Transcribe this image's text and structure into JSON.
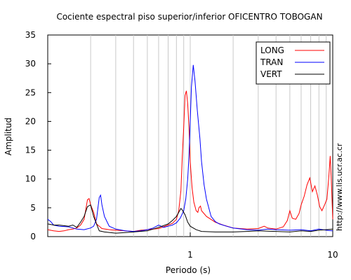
{
  "chart_data": {
    "type": "line",
    "title": "Cociente espectral piso superior/inferior OFICENTRO TOBOGAN",
    "xlabel": "Periodo (s)",
    "ylabel": "Amplitud",
    "xscale": "log",
    "xlim": [
      0.1,
      10
    ],
    "ylim": [
      0,
      35
    ],
    "xtick_labels": [
      {
        "value": 1,
        "label": "1"
      },
      {
        "value": 10,
        "label": "10"
      }
    ],
    "ytick_labels": [
      {
        "value": 0,
        "label": "0"
      },
      {
        "value": 5,
        "label": "5"
      },
      {
        "value": 10,
        "label": "10"
      },
      {
        "value": 15,
        "label": "15"
      },
      {
        "value": 20,
        "label": "20"
      },
      {
        "value": 25,
        "label": "25"
      },
      {
        "value": 30,
        "label": "30"
      },
      {
        "value": 35,
        "label": "35"
      }
    ],
    "grid": "vertical minor lines at log decades",
    "legend_position": "top-right",
    "side_label": "http://www.lis.ucr.ac.cr",
    "series": [
      {
        "name": "LONG",
        "color": "#ff0000",
        "points": [
          [
            0.1,
            1.2
          ],
          [
            0.11,
            1.0
          ],
          [
            0.12,
            0.9
          ],
          [
            0.13,
            1.0
          ],
          [
            0.14,
            1.2
          ],
          [
            0.15,
            1.3
          ],
          [
            0.16,
            1.5
          ],
          [
            0.17,
            2.0
          ],
          [
            0.18,
            3.0
          ],
          [
            0.19,
            6.4
          ],
          [
            0.195,
            6.6
          ],
          [
            0.2,
            5.5
          ],
          [
            0.21,
            4.2
          ],
          [
            0.22,
            2.2
          ],
          [
            0.24,
            1.4
          ],
          [
            0.27,
            1.2
          ],
          [
            0.3,
            1.1
          ],
          [
            0.35,
            1.0
          ],
          [
            0.4,
            0.9
          ],
          [
            0.45,
            1.1
          ],
          [
            0.5,
            1.2
          ],
          [
            0.55,
            1.3
          ],
          [
            0.6,
            1.4
          ],
          [
            0.65,
            1.7
          ],
          [
            0.7,
            2.0
          ],
          [
            0.75,
            2.3
          ],
          [
            0.8,
            3.0
          ],
          [
            0.83,
            4.5
          ],
          [
            0.86,
            8.0
          ],
          [
            0.88,
            14.0
          ],
          [
            0.9,
            19.0
          ],
          [
            0.92,
            24.5
          ],
          [
            0.94,
            25.3
          ],
          [
            0.96,
            23.0
          ],
          [
            0.98,
            19.0
          ],
          [
            1.0,
            13.0
          ],
          [
            1.03,
            8.5
          ],
          [
            1.06,
            6.0
          ],
          [
            1.1,
            4.5
          ],
          [
            1.13,
            4.2
          ],
          [
            1.15,
            5.0
          ],
          [
            1.18,
            5.3
          ],
          [
            1.2,
            4.5
          ],
          [
            1.3,
            3.5
          ],
          [
            1.5,
            2.5
          ],
          [
            1.7,
            2.0
          ],
          [
            2.0,
            1.5
          ],
          [
            2.5,
            1.3
          ],
          [
            3.0,
            1.4
          ],
          [
            3.3,
            1.8
          ],
          [
            3.5,
            1.5
          ],
          [
            4.0,
            1.3
          ],
          [
            4.5,
            1.7
          ],
          [
            4.8,
            2.8
          ],
          [
            5.0,
            4.5
          ],
          [
            5.2,
            3.2
          ],
          [
            5.5,
            3.0
          ],
          [
            5.8,
            4.0
          ],
          [
            6.0,
            5.5
          ],
          [
            6.3,
            7.0
          ],
          [
            6.6,
            9.0
          ],
          [
            6.9,
            10.2
          ],
          [
            7.2,
            7.8
          ],
          [
            7.5,
            8.8
          ],
          [
            7.8,
            7.2
          ],
          [
            8.1,
            5.2
          ],
          [
            8.4,
            4.5
          ],
          [
            8.8,
            5.6
          ],
          [
            9.1,
            6.5
          ],
          [
            9.4,
            10.5
          ],
          [
            9.6,
            14.0
          ],
          [
            9.8,
            9.0
          ],
          [
            10.0,
            3.0
          ]
        ]
      },
      {
        "name": "TRAN",
        "color": "#0000ff",
        "points": [
          [
            0.1,
            3.0
          ],
          [
            0.105,
            2.6
          ],
          [
            0.11,
            2.0
          ],
          [
            0.12,
            1.8
          ],
          [
            0.14,
            1.7
          ],
          [
            0.16,
            1.3
          ],
          [
            0.18,
            1.2
          ],
          [
            0.2,
            1.5
          ],
          [
            0.21,
            1.8
          ],
          [
            0.22,
            3.0
          ],
          [
            0.225,
            5.0
          ],
          [
            0.23,
            6.8
          ],
          [
            0.235,
            7.2
          ],
          [
            0.24,
            5.5
          ],
          [
            0.25,
            3.5
          ],
          [
            0.27,
            1.8
          ],
          [
            0.3,
            1.3
          ],
          [
            0.35,
            1.0
          ],
          [
            0.4,
            0.9
          ],
          [
            0.45,
            1.0
          ],
          [
            0.5,
            1.2
          ],
          [
            0.55,
            1.5
          ],
          [
            0.6,
            2.0
          ],
          [
            0.65,
            1.6
          ],
          [
            0.7,
            1.8
          ],
          [
            0.75,
            2.0
          ],
          [
            0.8,
            2.4
          ],
          [
            0.85,
            3.2
          ],
          [
            0.9,
            4.5
          ],
          [
            0.93,
            6.5
          ],
          [
            0.96,
            10.0
          ],
          [
            0.98,
            14.0
          ],
          [
            1.0,
            20.0
          ],
          [
            1.02,
            26.0
          ],
          [
            1.05,
            29.8
          ],
          [
            1.08,
            27.0
          ],
          [
            1.12,
            22.0
          ],
          [
            1.17,
            17.0
          ],
          [
            1.2,
            13.0
          ],
          [
            1.25,
            9.0
          ],
          [
            1.3,
            6.5
          ],
          [
            1.4,
            3.5
          ],
          [
            1.5,
            2.6
          ],
          [
            1.6,
            2.2
          ],
          [
            1.8,
            1.8
          ],
          [
            2.0,
            1.5
          ],
          [
            2.5,
            1.2
          ],
          [
            3.0,
            1.1
          ],
          [
            3.5,
            1.3
          ],
          [
            4.0,
            1.2
          ],
          [
            5.0,
            1.1
          ],
          [
            6.0,
            1.2
          ],
          [
            7.0,
            1.0
          ],
          [
            8.0,
            1.3
          ],
          [
            9.0,
            1.1
          ],
          [
            10.0,
            1.0
          ]
        ]
      },
      {
        "name": "VERT",
        "color": "#000000",
        "points": [
          [
            0.1,
            2.2
          ],
          [
            0.11,
            2.0
          ],
          [
            0.12,
            2.0
          ],
          [
            0.13,
            1.9
          ],
          [
            0.14,
            1.8
          ],
          [
            0.15,
            2.0
          ],
          [
            0.16,
            1.6
          ],
          [
            0.17,
            2.5
          ],
          [
            0.18,
            3.5
          ],
          [
            0.19,
            5.2
          ],
          [
            0.2,
            5.5
          ],
          [
            0.21,
            3.5
          ],
          [
            0.22,
            2.2
          ],
          [
            0.23,
            1.0
          ],
          [
            0.25,
            0.8
          ],
          [
            0.3,
            0.6
          ],
          [
            0.35,
            0.7
          ],
          [
            0.4,
            0.8
          ],
          [
            0.5,
            1.0
          ],
          [
            0.6,
            1.6
          ],
          [
            0.7,
            2.2
          ],
          [
            0.75,
            2.8
          ],
          [
            0.8,
            3.5
          ],
          [
            0.83,
            4.2
          ],
          [
            0.86,
            4.9
          ],
          [
            0.88,
            4.6
          ],
          [
            0.92,
            3.8
          ],
          [
            0.96,
            2.5
          ],
          [
            1.0,
            1.8
          ],
          [
            1.1,
            1.2
          ],
          [
            1.2,
            0.9
          ],
          [
            1.5,
            0.8
          ],
          [
            2.0,
            0.8
          ],
          [
            2.5,
            0.9
          ],
          [
            3.0,
            1.0
          ],
          [
            4.0,
            0.9
          ],
          [
            5.0,
            0.8
          ],
          [
            6.0,
            1.0
          ],
          [
            7.0,
            0.9
          ],
          [
            8.0,
            1.1
          ],
          [
            9.0,
            1.2
          ],
          [
            10.0,
            1.3
          ]
        ]
      }
    ]
  }
}
